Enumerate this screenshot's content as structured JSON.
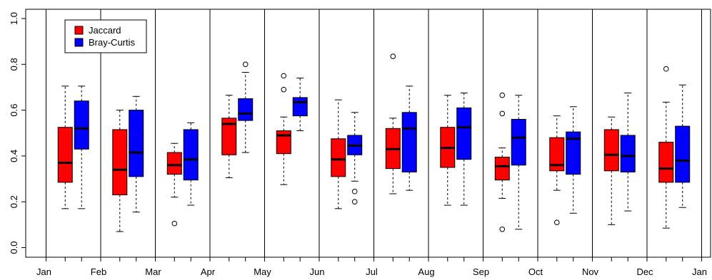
{
  "chart_data": {
    "type": "boxplot",
    "ylim": [
      0,
      1
    ],
    "y_ticks": [
      "0.0",
      "0.2",
      "0.4",
      "0.6",
      "0.8",
      "1.0"
    ],
    "x_ticks": [
      "Jan",
      "Feb",
      "Mar",
      "Apr",
      "May",
      "Jun",
      "Jul",
      "Aug",
      "Sep",
      "Oct",
      "Nov",
      "Dec",
      "Jan"
    ],
    "legend": {
      "position": "top-left",
      "entries": [
        {
          "label": "Jaccard",
          "color": "#ff0000"
        },
        {
          "label": "Bray-Curtis",
          "color": "#0000ff"
        }
      ]
    },
    "series": [
      {
        "name": "Jaccard",
        "color": "#ff0000",
        "boxes": [
          {
            "min": 0.17,
            "q1": 0.285,
            "median": 0.37,
            "q3": 0.525,
            "max": 0.705,
            "outliers": []
          },
          {
            "min": 0.07,
            "q1": 0.23,
            "median": 0.34,
            "q3": 0.515,
            "max": 0.6,
            "outliers": []
          },
          {
            "min": 0.22,
            "q1": 0.32,
            "median": 0.36,
            "q3": 0.415,
            "max": 0.455,
            "outliers": [
              0.105
            ]
          },
          {
            "min": 0.305,
            "q1": 0.405,
            "median": 0.54,
            "q3": 0.565,
            "max": 0.665,
            "outliers": []
          },
          {
            "min": 0.275,
            "q1": 0.41,
            "median": 0.49,
            "q3": 0.51,
            "max": 0.57,
            "outliers": [
              0.69,
              0.75
            ]
          },
          {
            "min": 0.17,
            "q1": 0.31,
            "median": 0.385,
            "q3": 0.475,
            "max": 0.645,
            "outliers": []
          },
          {
            "min": 0.235,
            "q1": 0.345,
            "median": 0.43,
            "q3": 0.52,
            "max": 0.565,
            "outliers": [
              0.835
            ]
          },
          {
            "min": 0.185,
            "q1": 0.35,
            "median": 0.435,
            "q3": 0.525,
            "max": 0.665,
            "outliers": []
          },
          {
            "min": 0.215,
            "q1": 0.295,
            "median": 0.355,
            "q3": 0.395,
            "max": 0.435,
            "outliers": [
              0.08,
              0.585,
              0.665
            ]
          },
          {
            "min": 0.25,
            "q1": 0.335,
            "median": 0.36,
            "q3": 0.48,
            "max": 0.575,
            "outliers": [
              0.11
            ]
          },
          {
            "min": 0.1,
            "q1": 0.335,
            "median": 0.405,
            "q3": 0.515,
            "max": 0.57,
            "outliers": []
          },
          {
            "min": 0.085,
            "q1": 0.285,
            "median": 0.345,
            "q3": 0.46,
            "max": 0.635,
            "outliers": [
              0.78
            ]
          }
        ]
      },
      {
        "name": "Bray-Curtis",
        "color": "#0000ff",
        "boxes": [
          {
            "min": 0.17,
            "q1": 0.43,
            "median": 0.52,
            "q3": 0.64,
            "max": 0.705,
            "outliers": []
          },
          {
            "min": 0.155,
            "q1": 0.31,
            "median": 0.415,
            "q3": 0.6,
            "max": 0.66,
            "outliers": []
          },
          {
            "min": 0.185,
            "q1": 0.295,
            "median": 0.385,
            "q3": 0.515,
            "max": 0.545,
            "outliers": []
          },
          {
            "min": 0.415,
            "q1": 0.555,
            "median": 0.585,
            "q3": 0.65,
            "max": 0.765,
            "outliers": [
              0.8
            ]
          },
          {
            "min": 0.51,
            "q1": 0.575,
            "median": 0.635,
            "q3": 0.655,
            "max": 0.74,
            "outliers": []
          },
          {
            "min": 0.29,
            "q1": 0.405,
            "median": 0.445,
            "q3": 0.49,
            "max": 0.59,
            "outliers": [
              0.2,
              0.245
            ]
          },
          {
            "min": 0.25,
            "q1": 0.33,
            "median": 0.52,
            "q3": 0.59,
            "max": 0.705,
            "outliers": []
          },
          {
            "min": 0.185,
            "q1": 0.385,
            "median": 0.525,
            "q3": 0.61,
            "max": 0.675,
            "outliers": []
          },
          {
            "min": 0.08,
            "q1": 0.36,
            "median": 0.48,
            "q3": 0.56,
            "max": 0.665,
            "outliers": []
          },
          {
            "min": 0.15,
            "q1": 0.32,
            "median": 0.475,
            "q3": 0.505,
            "max": 0.615,
            "outliers": []
          },
          {
            "min": 0.16,
            "q1": 0.33,
            "median": 0.4,
            "q3": 0.49,
            "max": 0.675,
            "outliers": []
          },
          {
            "min": 0.175,
            "q1": 0.285,
            "median": 0.38,
            "q3": 0.53,
            "max": 0.71,
            "outliers": []
          }
        ]
      }
    ]
  }
}
